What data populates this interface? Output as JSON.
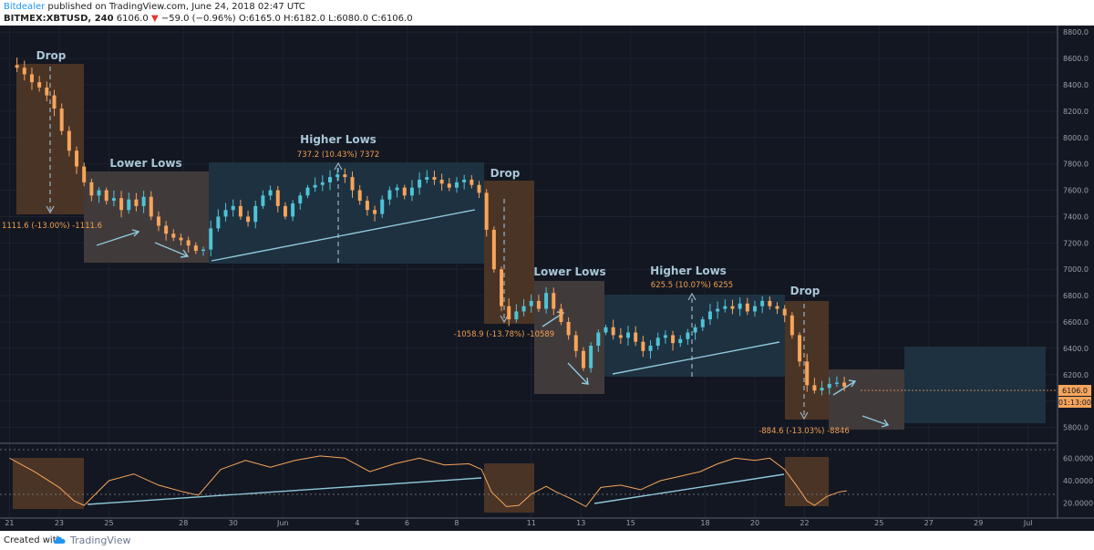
{
  "header": {
    "author": "Bitdealer",
    "published": " published on TradingView.com, June 24, 2018 02:47 UTC",
    "symbol": "BITMEX:XBTUSD, 240",
    "last": "6106.0",
    "down_arrow": "▼",
    "change": "−59.0 (−0.96%)",
    "ohlc": "O:6165.0 H:6182.0 L:6080.0 C:6106.0"
  },
  "footer": {
    "created_with": "Created with",
    "brand": "TradingView"
  },
  "colors": {
    "background": "#131722",
    "bull": "#4fc3d5",
    "bear": "#f7a55a",
    "drop_box": "#4a3426",
    "lower_lows_box": "#413a3b",
    "higher_lows_box": "#1e3140",
    "label": "#a8c6d6",
    "measure_text": "#f0a050",
    "rsi_line": "#f7a55a",
    "trendline": "#8fc8dc"
  },
  "chart_data": {
    "type": "candlestick",
    "symbol": "BITMEX:XBTUSD",
    "interval": "240",
    "y_ticks": [
      5800,
      6000,
      6200,
      6400,
      6600,
      6800,
      7000,
      7200,
      7400,
      7600,
      7800,
      8000,
      8200,
      8400,
      8600,
      8800
    ],
    "ylim": [
      5700,
      8850
    ],
    "x_labels": [
      "21",
      "23",
      "25",
      "28",
      "30",
      "Jun",
      "4",
      "6",
      "8",
      "11",
      "13",
      "15",
      "18",
      "20",
      "22",
      "25",
      "27",
      "29",
      "Jul"
    ],
    "x_label_days": [
      21,
      23,
      25,
      28,
      30,
      32,
      35,
      37,
      39,
      42,
      44,
      46,
      49,
      51,
      53,
      56,
      58,
      60,
      62
    ],
    "xlim": [
      20.8,
      63.0
    ],
    "last_price_label": "6106.0",
    "countdown_label": "01:13:00",
    "price_path": [
      [
        21.0,
        8550
      ],
      [
        21.3,
        8530
      ],
      [
        21.6,
        8480
      ],
      [
        21.9,
        8420
      ],
      [
        22.2,
        8380
      ],
      [
        22.5,
        8320
      ],
      [
        22.8,
        8220
      ],
      [
        23.1,
        8050
      ],
      [
        23.4,
        7900
      ],
      [
        23.7,
        7780
      ],
      [
        24.0,
        7660
      ],
      [
        24.3,
        7560
      ],
      [
        24.6,
        7600
      ],
      [
        24.9,
        7520
      ],
      [
        25.2,
        7540
      ],
      [
        25.5,
        7450
      ],
      [
        25.8,
        7530
      ],
      [
        26.1,
        7480
      ],
      [
        26.4,
        7550
      ],
      [
        26.7,
        7400
      ],
      [
        27.0,
        7330
      ],
      [
        27.3,
        7270
      ],
      [
        27.6,
        7240
      ],
      [
        27.9,
        7220
      ],
      [
        28.2,
        7180
      ],
      [
        28.5,
        7140
      ],
      [
        28.8,
        7150
      ],
      [
        29.1,
        7310
      ],
      [
        29.4,
        7400
      ],
      [
        29.7,
        7450
      ],
      [
        30.0,
        7480
      ],
      [
        30.3,
        7400
      ],
      [
        30.6,
        7360
      ],
      [
        30.9,
        7480
      ],
      [
        31.2,
        7560
      ],
      [
        31.5,
        7600
      ],
      [
        31.8,
        7480
      ],
      [
        32.1,
        7400
      ],
      [
        32.4,
        7500
      ],
      [
        32.7,
        7560
      ],
      [
        33.0,
        7620
      ],
      [
        33.3,
        7640
      ],
      [
        33.6,
        7660
      ],
      [
        33.9,
        7700
      ],
      [
        34.2,
        7720
      ],
      [
        34.5,
        7700
      ],
      [
        34.8,
        7600
      ],
      [
        35.1,
        7520
      ],
      [
        35.4,
        7450
      ],
      [
        35.7,
        7420
      ],
      [
        36.0,
        7530
      ],
      [
        36.3,
        7600
      ],
      [
        36.6,
        7620
      ],
      [
        36.9,
        7560
      ],
      [
        37.2,
        7620
      ],
      [
        37.5,
        7680
      ],
      [
        37.8,
        7700
      ],
      [
        38.1,
        7680
      ],
      [
        38.4,
        7650
      ],
      [
        38.7,
        7620
      ],
      [
        39.0,
        7660
      ],
      [
        39.3,
        7680
      ],
      [
        39.6,
        7640
      ],
      [
        39.9,
        7580
      ],
      [
        40.2,
        7300
      ],
      [
        40.5,
        7000
      ],
      [
        40.8,
        6720
      ],
      [
        41.1,
        6620
      ],
      [
        41.4,
        6680
      ],
      [
        41.7,
        6720
      ],
      [
        42.0,
        6760
      ],
      [
        42.3,
        6700
      ],
      [
        42.6,
        6820
      ],
      [
        42.9,
        6700
      ],
      [
        43.2,
        6600
      ],
      [
        43.5,
        6500
      ],
      [
        43.8,
        6380
      ],
      [
        44.1,
        6250
      ],
      [
        44.4,
        6420
      ],
      [
        44.7,
        6520
      ],
      [
        45.0,
        6560
      ],
      [
        45.3,
        6500
      ],
      [
        45.6,
        6480
      ],
      [
        45.9,
        6520
      ],
      [
        46.2,
        6450
      ],
      [
        46.5,
        6380
      ],
      [
        46.8,
        6420
      ],
      [
        47.1,
        6480
      ],
      [
        47.4,
        6500
      ],
      [
        47.7,
        6440
      ],
      [
        48.0,
        6470
      ],
      [
        48.3,
        6520
      ],
      [
        48.6,
        6560
      ],
      [
        48.9,
        6620
      ],
      [
        49.2,
        6680
      ],
      [
        49.5,
        6700
      ],
      [
        49.8,
        6720
      ],
      [
        50.1,
        6700
      ],
      [
        50.4,
        6740
      ],
      [
        50.7,
        6680
      ],
      [
        51.0,
        6720
      ],
      [
        51.3,
        6760
      ],
      [
        51.6,
        6720
      ],
      [
        51.9,
        6700
      ],
      [
        52.2,
        6650
      ],
      [
        52.5,
        6500
      ],
      [
        52.8,
        6300
      ],
      [
        53.1,
        6120
      ],
      [
        53.4,
        6080
      ],
      [
        53.7,
        6100
      ],
      [
        54.0,
        6130
      ],
      [
        54.3,
        6140
      ],
      [
        54.6,
        6110
      ]
    ],
    "rsi": {
      "ticks": [
        20,
        40,
        60
      ],
      "ylim": [
        10,
        70
      ],
      "levels": [
        30,
        70
      ],
      "path": [
        [
          21.0,
          60
        ],
        [
          22.0,
          48
        ],
        [
          23.0,
          34
        ],
        [
          23.6,
          22
        ],
        [
          24.0,
          18
        ],
        [
          25.0,
          40
        ],
        [
          26.0,
          46
        ],
        [
          27.0,
          36
        ],
        [
          28.0,
          30
        ],
        [
          28.6,
          27
        ],
        [
          29.5,
          50
        ],
        [
          30.5,
          58
        ],
        [
          31.5,
          52
        ],
        [
          32.5,
          58
        ],
        [
          33.5,
          62
        ],
        [
          34.5,
          60
        ],
        [
          35.5,
          48
        ],
        [
          36.5,
          55
        ],
        [
          37.5,
          60
        ],
        [
          38.5,
          54
        ],
        [
          39.5,
          55
        ],
        [
          40.0,
          50
        ],
        [
          40.4,
          30
        ],
        [
          41.0,
          17
        ],
        [
          41.5,
          18
        ],
        [
          42.0,
          28
        ],
        [
          42.6,
          35
        ],
        [
          43.0,
          30
        ],
        [
          43.6,
          24
        ],
        [
          44.2,
          17
        ],
        [
          44.8,
          34
        ],
        [
          45.6,
          36
        ],
        [
          46.4,
          32
        ],
        [
          47.2,
          40
        ],
        [
          48.0,
          44
        ],
        [
          48.8,
          48
        ],
        [
          49.5,
          55
        ],
        [
          50.2,
          60
        ],
        [
          51.0,
          58
        ],
        [
          51.6,
          60
        ],
        [
          52.2,
          50
        ],
        [
          52.7,
          35
        ],
        [
          53.1,
          22
        ],
        [
          53.4,
          18
        ],
        [
          53.9,
          26
        ],
        [
          54.4,
          30
        ],
        [
          54.7,
          31
        ]
      ]
    },
    "annotations": {
      "drop_label": "Drop",
      "lower_lows_label": "Lower Lows",
      "higher_lows_label": "Higher Lows",
      "measure_1": "1111.6 (-13.00%) -1111.6",
      "measure_2": "737.2 (10.43%) 7372",
      "measure_3": "-1058.9 (-13.78%) -10589",
      "measure_4": "625.5 (10.07%) 6255",
      "measure_5": "-884.6 (-13.03%) -8846"
    }
  }
}
